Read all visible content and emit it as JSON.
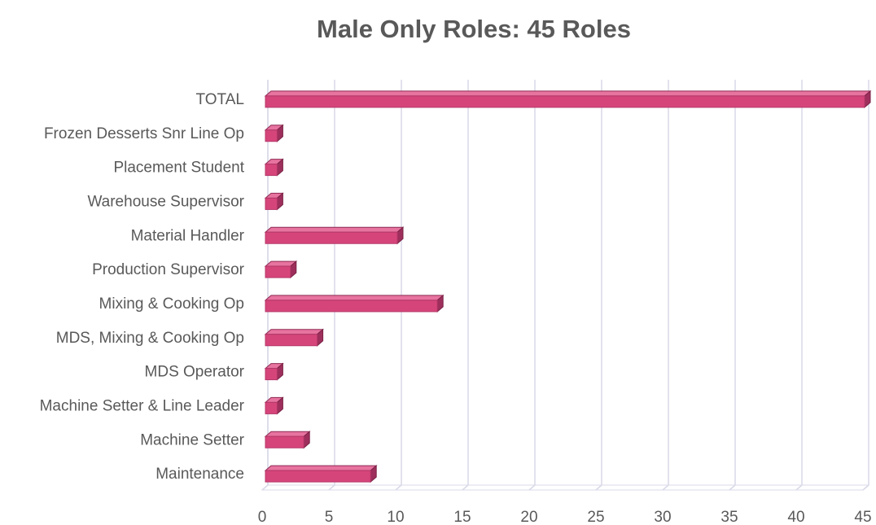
{
  "chart_data": {
    "type": "bar3d_horizontal",
    "title": "Male Only Roles: 45 Roles",
    "categories": [
      "TOTAL",
      "Frozen Desserts Snr Line Op",
      "Placement Student",
      "Warehouse Supervisor",
      "Material Handler",
      "Production Supervisor",
      "Mixing & Cooking Op",
      "MDS, Mixing & Cooking Op",
      "MDS Operator",
      "Machine Setter & Line Leader",
      "Machine Setter",
      "Maintenance"
    ],
    "values": [
      45,
      1,
      1,
      1,
      10,
      2,
      13,
      4,
      1,
      1,
      3,
      8
    ],
    "color": "#d6457a",
    "xlim": [
      0,
      45
    ],
    "xticks": [
      0,
      5,
      10,
      15,
      20,
      25,
      30,
      35,
      40,
      45
    ],
    "grid": true
  }
}
